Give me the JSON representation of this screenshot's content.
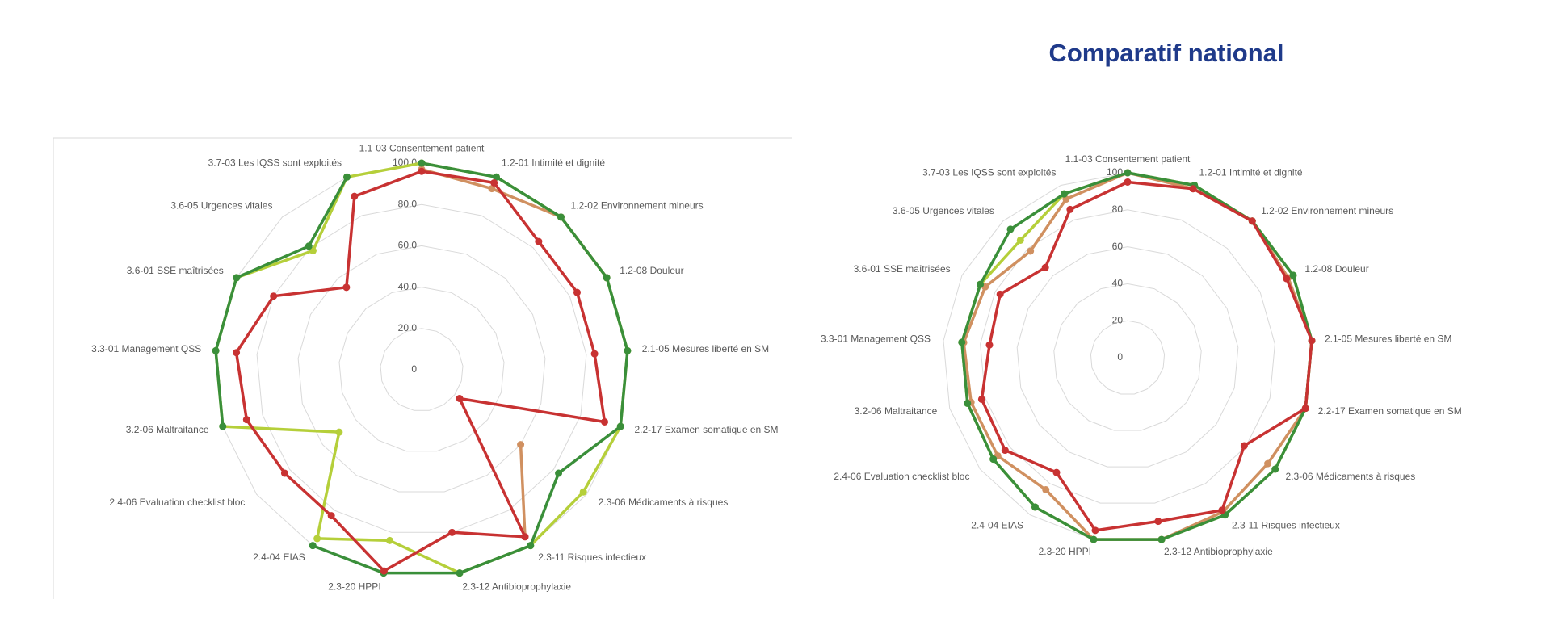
{
  "chart_data": [
    {
      "type": "radar",
      "categories": [
        "1.1-03 Consentement patient",
        "1.2-01 Intimité et dignité",
        "1.2-02 Environnement mineurs",
        "1.2-08 Douleur",
        "2.1-05 Mesures liberté en SM",
        "2.2-17 Examen somatique en SM",
        "2.3-06 Médicaments à risques",
        "2.3-11 Risques infectieux",
        "2.3-12 Antibioprophylaxie",
        "2.3-20 HPPI",
        "2.4-04 EIAS",
        "2.4-06 Evaluation checklist bloc",
        "3.2-06 Maltraitance",
        "3.3-01 Management QSS",
        "3.6-01 SSE maîtrisées",
        "3.6-05 Urgences vitales",
        "3.7-03 Les IQSS sont exploités"
      ],
      "series": [
        {
          "color": "#b5cf3a",
          "values": [
            100,
            100,
            100,
            100,
            100,
            100,
            98,
            100,
            100,
            84,
            96,
            50,
            100,
            100,
            100,
            78,
            100
          ]
        },
        {
          "color": "#d09060",
          "values": [
            97,
            94,
            100,
            100,
            null,
            null,
            60,
            95,
            null,
            null,
            null,
            null,
            null,
            null,
            null,
            null,
            null
          ]
        },
        {
          "color": "#3a8f3a",
          "values": [
            100,
            100,
            100,
            100,
            100,
            100,
            83,
            100,
            100,
            100,
            100,
            null,
            100,
            100,
            100,
            81,
            100
          ]
        },
        {
          "color": "#c83232",
          "values": [
            96,
            97,
            84,
            84,
            84,
            92,
            23,
            95,
            80,
            99,
            83,
            83,
            88,
            90,
            80,
            54,
            90
          ]
        }
      ],
      "ylim": [
        0,
        100
      ],
      "yticks": [
        0,
        {
          "value": 20,
          "label": "20.0"
        },
        {
          "value": 40,
          "label": "40.0"
        },
        {
          "value": 60,
          "label": "60.0"
        },
        {
          "value": 80,
          "label": "80.0"
        },
        {
          "value": 100,
          "label": "100.0"
        }
      ],
      "grid": true
    },
    {
      "type": "radar",
      "title": "Comparatif national",
      "categories": [
        "1.1-03 Consentement patient",
        "1.2-01 Intimité et dignité",
        "1.2-02 Environnement mineurs",
        "1.2-08 Douleur",
        "2.1-05 Mesures liberté en SM",
        "2.2-17 Examen somatique en SM",
        "2.3-06 Médicaments à risques",
        "2.3-11 Risques infectieux",
        "2.3-12 Antibioprophylaxie",
        "2.3-20 HPPI",
        "2.4-04 EIAS",
        "2.4-06 Evaluation checklist bloc",
        "3.2-06 Maltraitance",
        "3.3-01 Management QSS",
        "3.6-01 SSE maîtrisées",
        "3.6-05 Urgences vitales",
        "3.7-03 Les IQSS sont exploités"
      ],
      "series": [
        {
          "color": "#b5cf3a",
          "values": [
            100,
            100,
            100,
            100,
            100,
            100,
            100,
            100,
            100,
            100,
            95,
            91,
            90,
            90,
            89,
            86,
            95
          ]
        },
        {
          "color": "#d09060",
          "values": [
            100,
            98,
            100,
            97,
            100,
            100,
            95,
            98,
            100,
            100,
            84,
            88,
            88,
            89,
            86,
            78,
            92
          ]
        },
        {
          "color": "#3a8f3a",
          "values": [
            100,
            100,
            100,
            100,
            100,
            100,
            100,
            100,
            100,
            100,
            95,
            91,
            90,
            90,
            89,
            94,
            95
          ]
        },
        {
          "color": "#c83232",
          "values": [
            95,
            98,
            100,
            96,
            100,
            100,
            79,
            97,
            90,
            95,
            73,
            83,
            82,
            75,
            77,
            66,
            86
          ]
        }
      ],
      "ylim": [
        0,
        100
      ],
      "yticks": [
        0,
        20,
        40,
        60,
        80,
        100
      ],
      "grid": true
    }
  ]
}
